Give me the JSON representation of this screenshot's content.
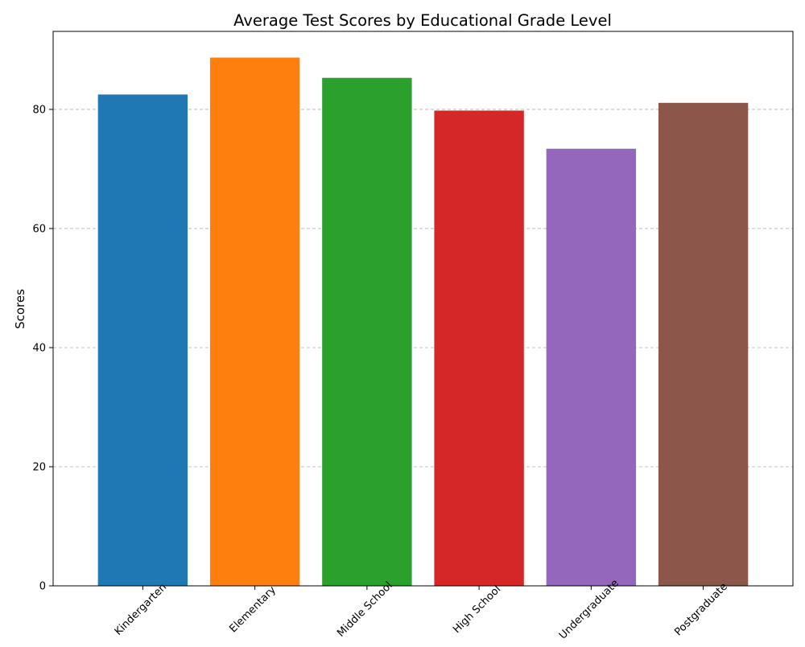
{
  "chart_data": {
    "type": "bar",
    "title": "Average Test Scores by Educational Grade Level",
    "xlabel": "",
    "ylabel": "Scores",
    "categories": [
      "Kindergarten",
      "Elementary",
      "Middle School",
      "High School",
      "Undergraduate",
      "Postgraduate"
    ],
    "values": [
      82.5,
      88.7,
      85.3,
      79.8,
      73.4,
      81.1
    ],
    "colors": [
      "#1f77b4",
      "#ff7f0e",
      "#2ca02c",
      "#d62728",
      "#9467bd",
      "#8c564b"
    ],
    "ylim": [
      0,
      93.1
    ],
    "yticks": [
      0,
      20,
      40,
      60,
      80
    ],
    "grid": "y-dashed",
    "legend": "none"
  }
}
